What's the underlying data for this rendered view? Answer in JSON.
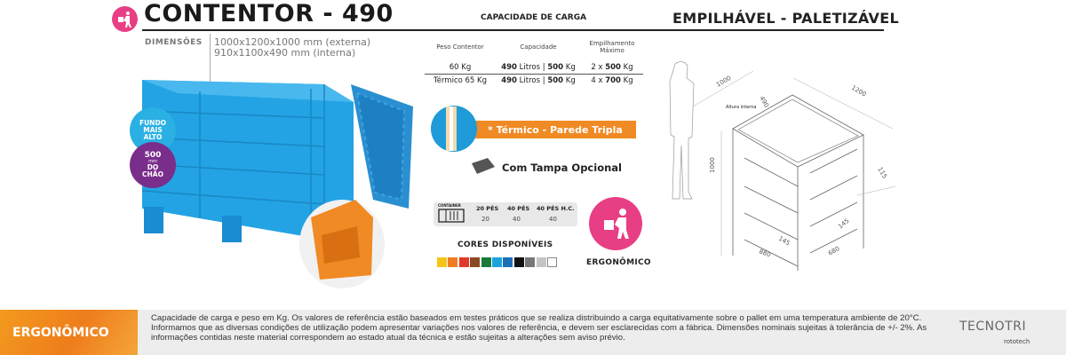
{
  "header": {
    "title": "CONTENTOR - 490",
    "capacity_heading": "CAPACIDADE DE CARGA",
    "stack_label": "EMPILHÁVEL - PALETIZÁVEL",
    "icon": "person-carrying-box-icon"
  },
  "dimensions": {
    "label": "DIMENSÕES",
    "external": "1000x1200x1000 mm (externa)",
    "internal": "910x1100x490 mm (interna)"
  },
  "capacity_table": {
    "headers": [
      "Peso Contentor",
      "Capacidade",
      "Empilhamento Máximo"
    ],
    "rows": [
      {
        "peso": "60 Kg",
        "cap_l": "490",
        "cap_l_unit": "Litros",
        "cap_sep": "|",
        "cap_kg": "500",
        "cap_kg_unit": "Kg",
        "emp_n": "2 x",
        "emp_kg": "500",
        "emp_unit": "Kg"
      },
      {
        "peso": "Térmico 65 Kg",
        "cap_l": "490",
        "cap_l_unit": "Litros",
        "cap_sep": "|",
        "cap_kg": "500",
        "cap_kg_unit": "Kg",
        "emp_n": "4 x",
        "emp_kg": "700",
        "emp_unit": "Kg"
      }
    ]
  },
  "badges": {
    "fundo": [
      "FUNDO",
      "MAIS",
      "ALTO"
    ],
    "altura": {
      "value": "500",
      "unit": "mm",
      "text1": "DO",
      "text2": "CHÃO"
    }
  },
  "features": {
    "thermal": "* Térmico - Parede Tripla",
    "lid": "Com Tampa Opcional"
  },
  "container_load": {
    "icon_label": "CONTAINER",
    "headers": [
      "20 PÉS",
      "40 PÉS",
      "40 PÉS H.C."
    ],
    "values": [
      "20",
      "40",
      "40"
    ]
  },
  "colors": {
    "label": "CORES DISPONÍVEIS",
    "swatches": [
      "#f6c417",
      "#ee7d22",
      "#e2392b",
      "#8a4b22",
      "#1a7a3a",
      "#1ea4dc",
      "#1a6fb8",
      "#111111",
      "#777777",
      "#c4c4c4",
      "#ffffff"
    ]
  },
  "ergonomic": {
    "label": "ERGONÔMICO",
    "accent": "#e83e84"
  },
  "drawing": {
    "d1000a": "1000",
    "d1200": "1200",
    "d490": "490",
    "internal": "Altura interna",
    "d1000h": "1000",
    "d115": "115",
    "d145a": "145",
    "d145b": "145",
    "d880": "880",
    "d680": "680"
  },
  "footer": {
    "label": "ERGONÔMICO",
    "text": "Capacidade de carga e peso em Kg. Os valores de referência estão baseados em testes práticos que se realiza distribuindo a carga equitativamente sobre o pallet em uma temperatura ambiente de 20°C. Informamos que as diversas condições de utilização podem apresentar variações nos valores de referência, e devem ser esclarecidas com a fábrica. Dimensões nominais sujeitas à tolerância de +/- 2%. As informações contidas neste material correspondem ao estado atual da técnica e estão sujeitas a alterações sem aviso prévio.",
    "logo": "TECNOTRI",
    "sublogo": "rototech"
  }
}
